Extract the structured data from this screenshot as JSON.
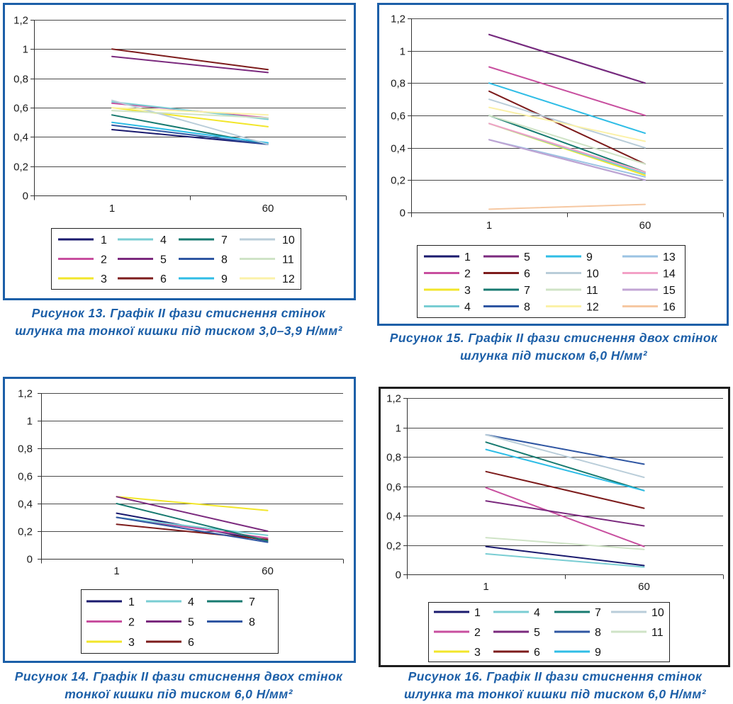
{
  "chart_data": [
    {
      "type": "line",
      "caption": [
        "Рисунок 13. Графік II фази стиснення стінок",
        "шлунка та тонкої кишки під тиском 3,0–3,9 Н/мм²"
      ],
      "categories": [
        "1",
        "60"
      ],
      "yticks": [
        0,
        0.2,
        0.4,
        0.6,
        0.8,
        1,
        1.2
      ],
      "ytick_labels": [
        "0",
        "0,2",
        "0,4",
        "0,6",
        "0,8",
        "1",
        "1,2"
      ],
      "ylim": [
        0,
        1.2
      ],
      "grid": true,
      "legend": "bottom",
      "frame_color": "#1c5fa8",
      "series": [
        {
          "name": "1",
          "color": "#1a1a6e",
          "values": [
            0.45,
            0.35
          ]
        },
        {
          "name": "2",
          "color": "#c84f9f",
          "values": [
            0.63,
            0.53
          ]
        },
        {
          "name": "3",
          "color": "#f2e62a",
          "values": [
            0.6,
            0.47
          ]
        },
        {
          "name": "4",
          "color": "#79cdd3",
          "values": [
            0.64,
            0.52
          ]
        },
        {
          "name": "5",
          "color": "#7b2a7e",
          "values": [
            0.95,
            0.84
          ]
        },
        {
          "name": "6",
          "color": "#7d1c1c",
          "values": [
            1.0,
            0.86
          ]
        },
        {
          "name": "7",
          "color": "#177a70",
          "values": [
            0.55,
            0.35
          ]
        },
        {
          "name": "8",
          "color": "#2f56a2",
          "values": [
            0.48,
            0.35
          ]
        },
        {
          "name": "9",
          "color": "#2fbde6",
          "values": [
            0.5,
            0.36
          ]
        },
        {
          "name": "10",
          "color": "#b9cdd9",
          "values": [
            0.65,
            0.35
          ]
        },
        {
          "name": "11",
          "color": "#cfe3c6",
          "values": [
            0.58,
            0.53
          ]
        },
        {
          "name": "12",
          "color": "#fbf1a8",
          "values": [
            0.6,
            0.55
          ]
        }
      ]
    },
    {
      "type": "line",
      "caption": [
        "Рисунок 15. Графік II фази стиснення двох стінок",
        "шлунка під тиском 6,0 Н/мм²"
      ],
      "categories": [
        "1",
        "60"
      ],
      "yticks": [
        0,
        0.2,
        0.4,
        0.6,
        0.8,
        1,
        1.2
      ],
      "ytick_labels": [
        "0",
        "0,2",
        "0,4",
        "0,6",
        "0,8",
        "1",
        "1,2"
      ],
      "ylim": [
        0,
        1.2
      ],
      "grid": true,
      "legend": "bottom",
      "frame_color": "#1c5fa8",
      "series": [
        {
          "name": "1",
          "color": "#1a1a6e",
          "values": [
            1.1,
            0.8
          ]
        },
        {
          "name": "2",
          "color": "#c84f9f",
          "values": [
            0.9,
            0.6
          ]
        },
        {
          "name": "3",
          "color": "#f2e62a",
          "values": [
            0.55,
            0.23
          ]
        },
        {
          "name": "4",
          "color": "#79cdd3",
          "values": [
            0.55,
            0.24
          ]
        },
        {
          "name": "5",
          "color": "#7b2a7e",
          "values": [
            1.1,
            0.8
          ]
        },
        {
          "name": "6",
          "color": "#7d1c1c",
          "values": [
            0.75,
            0.3
          ]
        },
        {
          "name": "7",
          "color": "#177a70",
          "values": [
            0.6,
            0.25
          ]
        },
        {
          "name": "8",
          "color": "#2f56a2",
          "values": [
            0.45,
            0.2
          ]
        },
        {
          "name": "9",
          "color": "#2fbde6",
          "values": [
            0.8,
            0.49
          ]
        },
        {
          "name": "10",
          "color": "#b9cdd9",
          "values": [
            0.7,
            0.4
          ]
        },
        {
          "name": "11",
          "color": "#cfe3c6",
          "values": [
            0.6,
            0.3
          ]
        },
        {
          "name": "12",
          "color": "#fbf1a8",
          "values": [
            0.65,
            0.44
          ]
        },
        {
          "name": "13",
          "color": "#9bc3e3",
          "values": [
            0.45,
            0.22
          ]
        },
        {
          "name": "14",
          "color": "#f3a1c6",
          "values": [
            0.55,
            0.25
          ]
        },
        {
          "name": "15",
          "color": "#c2a4d4",
          "values": [
            0.45,
            0.2
          ]
        },
        {
          "name": "16",
          "color": "#f6c8a2",
          "values": [
            0.02,
            0.05
          ]
        }
      ]
    },
    {
      "type": "line",
      "caption": [
        "Рисунок 14. Графік II фази стиснення двох стінок",
        "тонкої кишки під тиском 6,0 Н/мм²"
      ],
      "categories": [
        "1",
        "60"
      ],
      "yticks": [
        0,
        0.2,
        0.4,
        0.6,
        0.8,
        1,
        1.2
      ],
      "ytick_labels": [
        "0",
        "0,2",
        "0,4",
        "0,6",
        "0,8",
        "1",
        "1,2"
      ],
      "ylim": [
        0,
        1.2
      ],
      "grid": true,
      "legend": "bottom",
      "frame_color": "#1c5fa8",
      "series": [
        {
          "name": "1",
          "color": "#1a1a6e",
          "values": [
            0.33,
            0.13
          ]
        },
        {
          "name": "2",
          "color": "#c84f9f",
          "values": [
            0.3,
            0.15
          ]
        },
        {
          "name": "3",
          "color": "#f2e62a",
          "values": [
            0.45,
            0.35
          ]
        },
        {
          "name": "4",
          "color": "#79cdd3",
          "values": [
            0.3,
            0.17
          ]
        },
        {
          "name": "5",
          "color": "#7b2a7e",
          "values": [
            0.45,
            0.2
          ]
        },
        {
          "name": "6",
          "color": "#7d1c1c",
          "values": [
            0.25,
            0.14
          ]
        },
        {
          "name": "7",
          "color": "#177a70",
          "values": [
            0.4,
            0.13
          ]
        },
        {
          "name": "8",
          "color": "#2f56a2",
          "values": [
            0.3,
            0.12
          ]
        }
      ]
    },
    {
      "type": "line",
      "caption": [
        "Рисунок 16. Графік II фази стиснення стінок",
        "шлунка та тонкої кишки під тиском 6,0 Н/мм²"
      ],
      "categories": [
        "1",
        "60"
      ],
      "yticks": [
        0,
        0.2,
        0.4,
        0.6,
        0.8,
        1,
        1.2
      ],
      "ytick_labels": [
        "0",
        "0,2",
        "0,4",
        "0,6",
        "0,8",
        "1",
        "1,2"
      ],
      "ylim": [
        0,
        1.2
      ],
      "grid": true,
      "legend": "bottom",
      "frame_color": "#1e1e1e",
      "series": [
        {
          "name": "1",
          "color": "#1a1a6e",
          "values": [
            0.19,
            0.06
          ]
        },
        {
          "name": "2",
          "color": "#c84f9f",
          "values": [
            0.59,
            0.19
          ]
        },
        {
          "name": "3",
          "color": "#f2e62a",
          "values": [
            null,
            null
          ]
        },
        {
          "name": "4",
          "color": "#79cdd3",
          "values": [
            0.14,
            0.05
          ]
        },
        {
          "name": "5",
          "color": "#7b2a7e",
          "values": [
            0.5,
            0.33
          ]
        },
        {
          "name": "6",
          "color": "#7d1c1c",
          "values": [
            0.7,
            0.45
          ]
        },
        {
          "name": "7",
          "color": "#177a70",
          "values": [
            0.9,
            0.57
          ]
        },
        {
          "name": "8",
          "color": "#2f56a2",
          "values": [
            0.95,
            0.75
          ]
        },
        {
          "name": "9",
          "color": "#2fbde6",
          "values": [
            0.85,
            0.57
          ]
        },
        {
          "name": "10",
          "color": "#b9cdd9",
          "values": [
            0.95,
            0.66
          ]
        },
        {
          "name": "11",
          "color": "#cfe3c6",
          "values": [
            0.25,
            0.17
          ]
        }
      ]
    }
  ]
}
